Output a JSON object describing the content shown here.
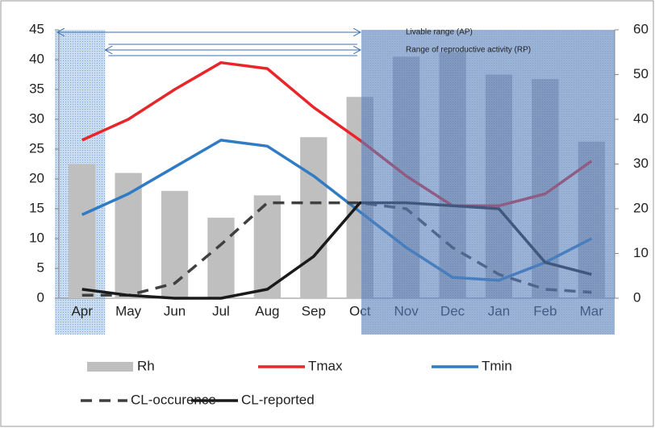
{
  "chart_data": {
    "type": "combo",
    "categories": [
      "Apr",
      "May",
      "Jun",
      "Jul",
      "Aug",
      "Sep",
      "Oct",
      "Nov",
      "Dec",
      "Jan",
      "Feb",
      "Mar"
    ],
    "series": [
      {
        "name": "Rh",
        "type": "bar",
        "axis": "y2",
        "color": "#bfbfbf",
        "values": [
          30,
          28,
          24,
          18,
          23,
          36,
          45,
          54,
          55,
          50,
          49,
          35
        ]
      },
      {
        "name": "Tmax",
        "type": "line",
        "color": "#e8262a",
        "values": [
          26.5,
          30,
          35,
          39.5,
          38.5,
          32,
          26.5,
          20.5,
          15.5,
          15.5,
          17.5,
          23
        ]
      },
      {
        "name": "Tmin",
        "type": "line",
        "color": "#2f7bc4",
        "values": [
          14,
          17.5,
          22,
          26.5,
          25.5,
          20.5,
          14.5,
          8.5,
          3.5,
          3,
          6,
          10
        ]
      },
      {
        "name": "CL-occurence",
        "type": "line",
        "dashed": true,
        "color": "#404040",
        "values": [
          0.5,
          0.5,
          2.5,
          9,
          16,
          16,
          16,
          15,
          8.5,
          4,
          1.5,
          1
        ]
      },
      {
        "name": "CL-reported",
        "type": "line",
        "color": "#1a1a1a",
        "values": [
          1.5,
          0.5,
          0,
          0,
          1.5,
          7,
          16,
          16,
          15.5,
          15,
          6,
          4
        ]
      }
    ],
    "ylim": [
      0,
      45
    ],
    "yticks": [
      0,
      5,
      10,
      15,
      20,
      25,
      30,
      35,
      40,
      45
    ],
    "y2lim": [
      0,
      60
    ],
    "y2ticks": [
      0,
      10,
      20,
      30,
      40,
      50,
      60
    ],
    "annotations": [
      "Livable range (AP)",
      "Range of reproductive activity  (RP)"
    ]
  }
}
